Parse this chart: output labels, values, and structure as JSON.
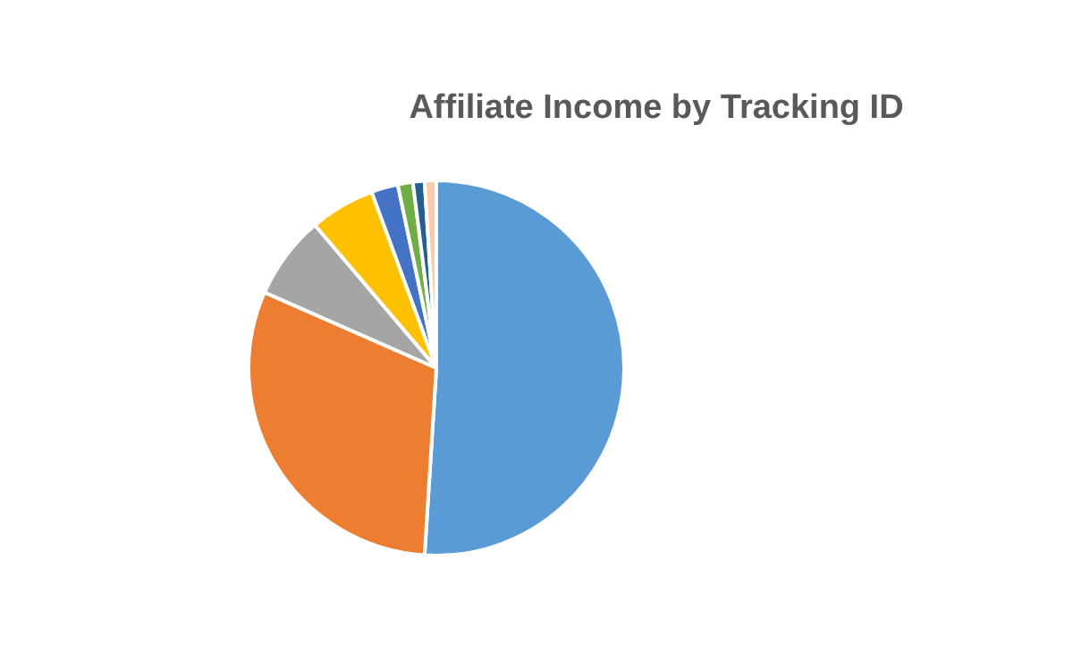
{
  "chart_data": {
    "type": "pie",
    "title": "Affiliate Income by Tracking ID",
    "categories": [
      null,
      null,
      null,
      null,
      null,
      null,
      null,
      null
    ],
    "values": [
      51,
      30.6,
      7.2,
      5.6,
      2.3,
      1.3,
      1.0,
      1.0
    ],
    "colors": [
      "#5b9bd5",
      "#ed7d31",
      "#a5a5a5",
      "#ffc000",
      "#4472c4",
      "#70ad47",
      "#255e91",
      "#f8cbad"
    ],
    "legend": false
  }
}
